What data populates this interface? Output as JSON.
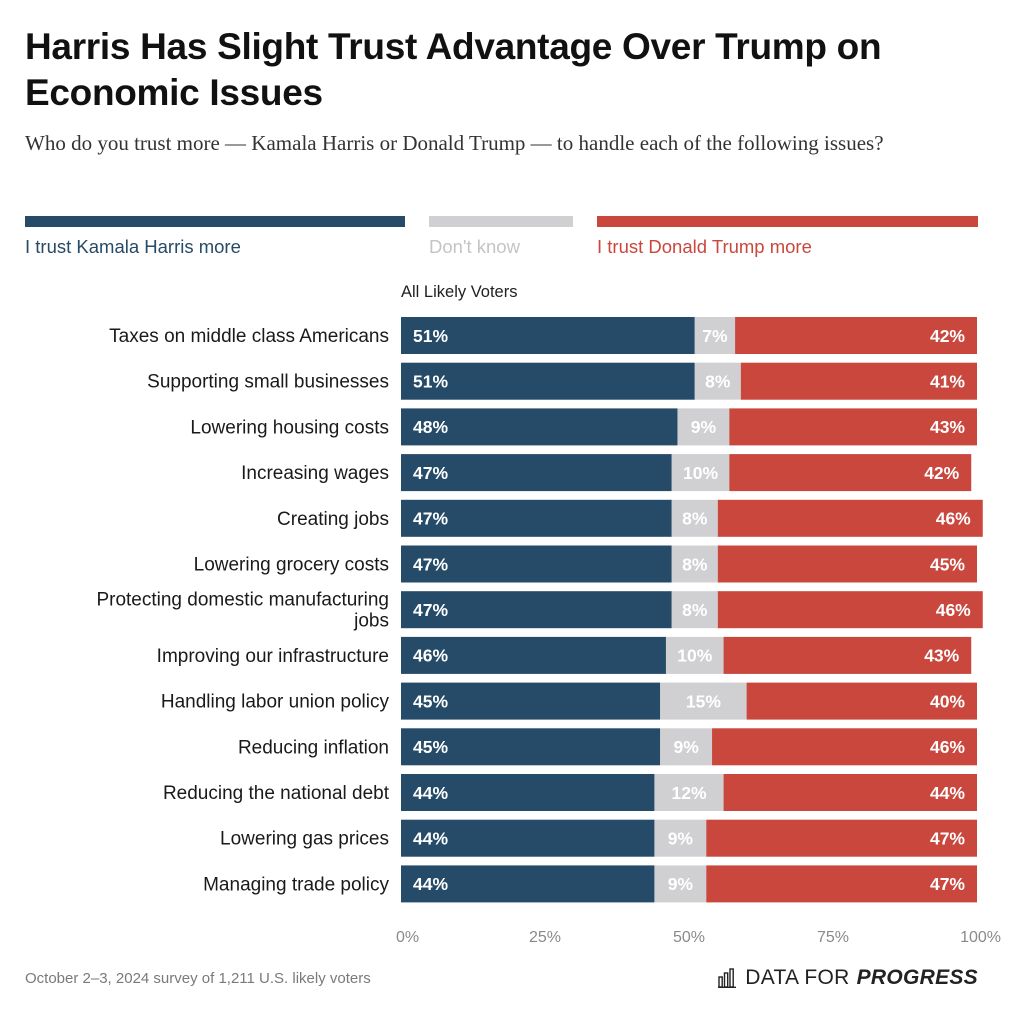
{
  "title": "Harris Has Slight Trust Advantage Over Trump on Economic Issues",
  "subtitle": "Who do you trust more — Kamala Harris or Donald Trump — to handle each of the following issues?",
  "colors": {
    "harris": "#254b69",
    "dont_know": "#d0d0d2",
    "trump": "#c9473d",
    "tick": "#8a8a8a"
  },
  "legend": {
    "harris": "I trust Kamala Harris more",
    "dont_know": "Don't know",
    "trump": "I trust Donald Trump more"
  },
  "group_label": "All Likely Voters",
  "chart_data": {
    "type": "bar",
    "orientation": "horizontal",
    "stacked": true,
    "xlim": [
      0,
      100
    ],
    "xticks": [
      "0%",
      "25%",
      "50%",
      "75%",
      "100%"
    ],
    "categories": [
      "Taxes on middle class Americans",
      "Supporting small businesses",
      "Lowering housing costs",
      "Increasing wages",
      "Creating jobs",
      "Lowering grocery costs",
      "Protecting domestic manufacturing jobs",
      "Improving our infrastructure",
      "Handling labor union policy",
      "Reducing inflation",
      "Reducing the national debt",
      "Lowering gas prices",
      "Managing trade policy"
    ],
    "series": [
      {
        "name": "I trust Kamala Harris more",
        "values": [
          51,
          51,
          48,
          47,
          47,
          47,
          47,
          46,
          45,
          45,
          44,
          44,
          44
        ]
      },
      {
        "name": "Don't know",
        "values": [
          7,
          8,
          9,
          10,
          8,
          8,
          8,
          10,
          15,
          9,
          12,
          9,
          9
        ]
      },
      {
        "name": "I trust Donald Trump more",
        "values": [
          42,
          41,
          43,
          42,
          46,
          45,
          46,
          43,
          40,
          46,
          44,
          47,
          47
        ]
      }
    ]
  },
  "footer": {
    "note": "October 2–3, 2024 survey of 1,211 U.S. likely voters",
    "brand_light": "DATA FOR",
    "brand_bold": "PROGRESS",
    "brand_icon": "bar-chart-logo-icon"
  }
}
